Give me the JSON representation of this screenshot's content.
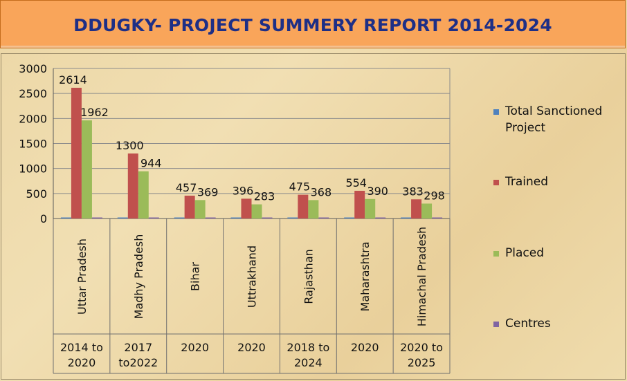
{
  "chart_data": {
    "type": "bar",
    "title": "DDUGKY- PROJECT SUMMERY REPORT 2014-2024",
    "categories": [
      "Uttar Pradesh",
      "Madhy Pradesh",
      "Bihar",
      "Uttrakhand",
      "Rajasthan",
      "Maharashtra",
      "Himachal Pradesh"
    ],
    "periods": [
      [
        "2014 to",
        "2020"
      ],
      [
        "2017",
        "to2022"
      ],
      [
        "2020"
      ],
      [
        "2020"
      ],
      [
        "2018 to",
        "2024"
      ],
      [
        "2020"
      ],
      [
        "2020 to",
        "2025"
      ]
    ],
    "series": [
      {
        "name": "Total Sanctioned Project",
        "color": "#4f81bd",
        "values": [
          5,
          5,
          5,
          5,
          5,
          5,
          5
        ]
      },
      {
        "name": "Trained",
        "color": "#c0504d",
        "values": [
          2614,
          1300,
          457,
          396,
          475,
          554,
          383
        ]
      },
      {
        "name": "Placed",
        "color": "#9bbb59",
        "values": [
          1962,
          944,
          369,
          283,
          368,
          390,
          298
        ]
      },
      {
        "name": "Centres",
        "color": "#8064a2",
        "values": [
          5,
          5,
          5,
          5,
          5,
          5,
          5
        ]
      }
    ],
    "labeled_series": [
      "Trained",
      "Placed"
    ],
    "yticks": [
      0,
      500,
      1000,
      1500,
      2000,
      2500,
      3000
    ],
    "ylim": [
      0,
      3000
    ],
    "grid": true,
    "legend_position": "right"
  }
}
